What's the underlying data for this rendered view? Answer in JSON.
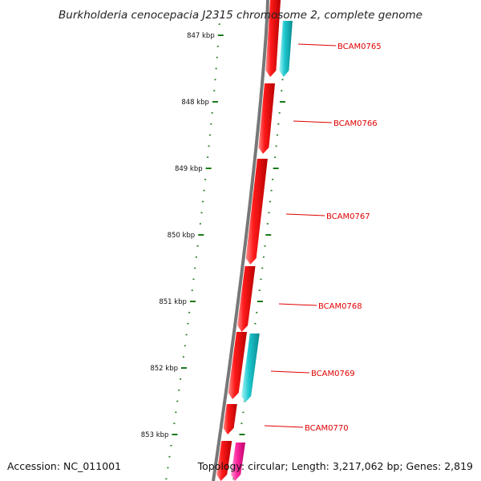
{
  "title": "Burkholderia cenocepacia J2315 chromosome 2, complete genome",
  "accession": "Accession: NC_011001",
  "summary": "Topology: circular; Length: 3,217,062 bp; Genes: 2,819",
  "colors": {
    "backbone": "#777777",
    "forward_gene": "#ff1a1a",
    "reverse_gene": "#1ec8cf",
    "rna_gene": "#ff2aa0",
    "tick": "#1a7a1a",
    "label_line": "#e00000"
  },
  "scale": {
    "kbp_labels": [
      "847 kbp",
      "848 kbp",
      "849 kbp",
      "850 kbp",
      "851 kbp",
      "852 kbp",
      "853 kbp"
    ]
  },
  "genes": [
    {
      "name": "BCAM0765",
      "strand": "-"
    },
    {
      "name": "BCAM0766",
      "strand": "-"
    },
    {
      "name": "BCAM0767",
      "strand": "-"
    },
    {
      "name": "BCAM0768",
      "strand": "-"
    },
    {
      "name": "BCAM0769",
      "strand": "+"
    },
    {
      "name": "BCAM0770",
      "strand": "-"
    }
  ]
}
